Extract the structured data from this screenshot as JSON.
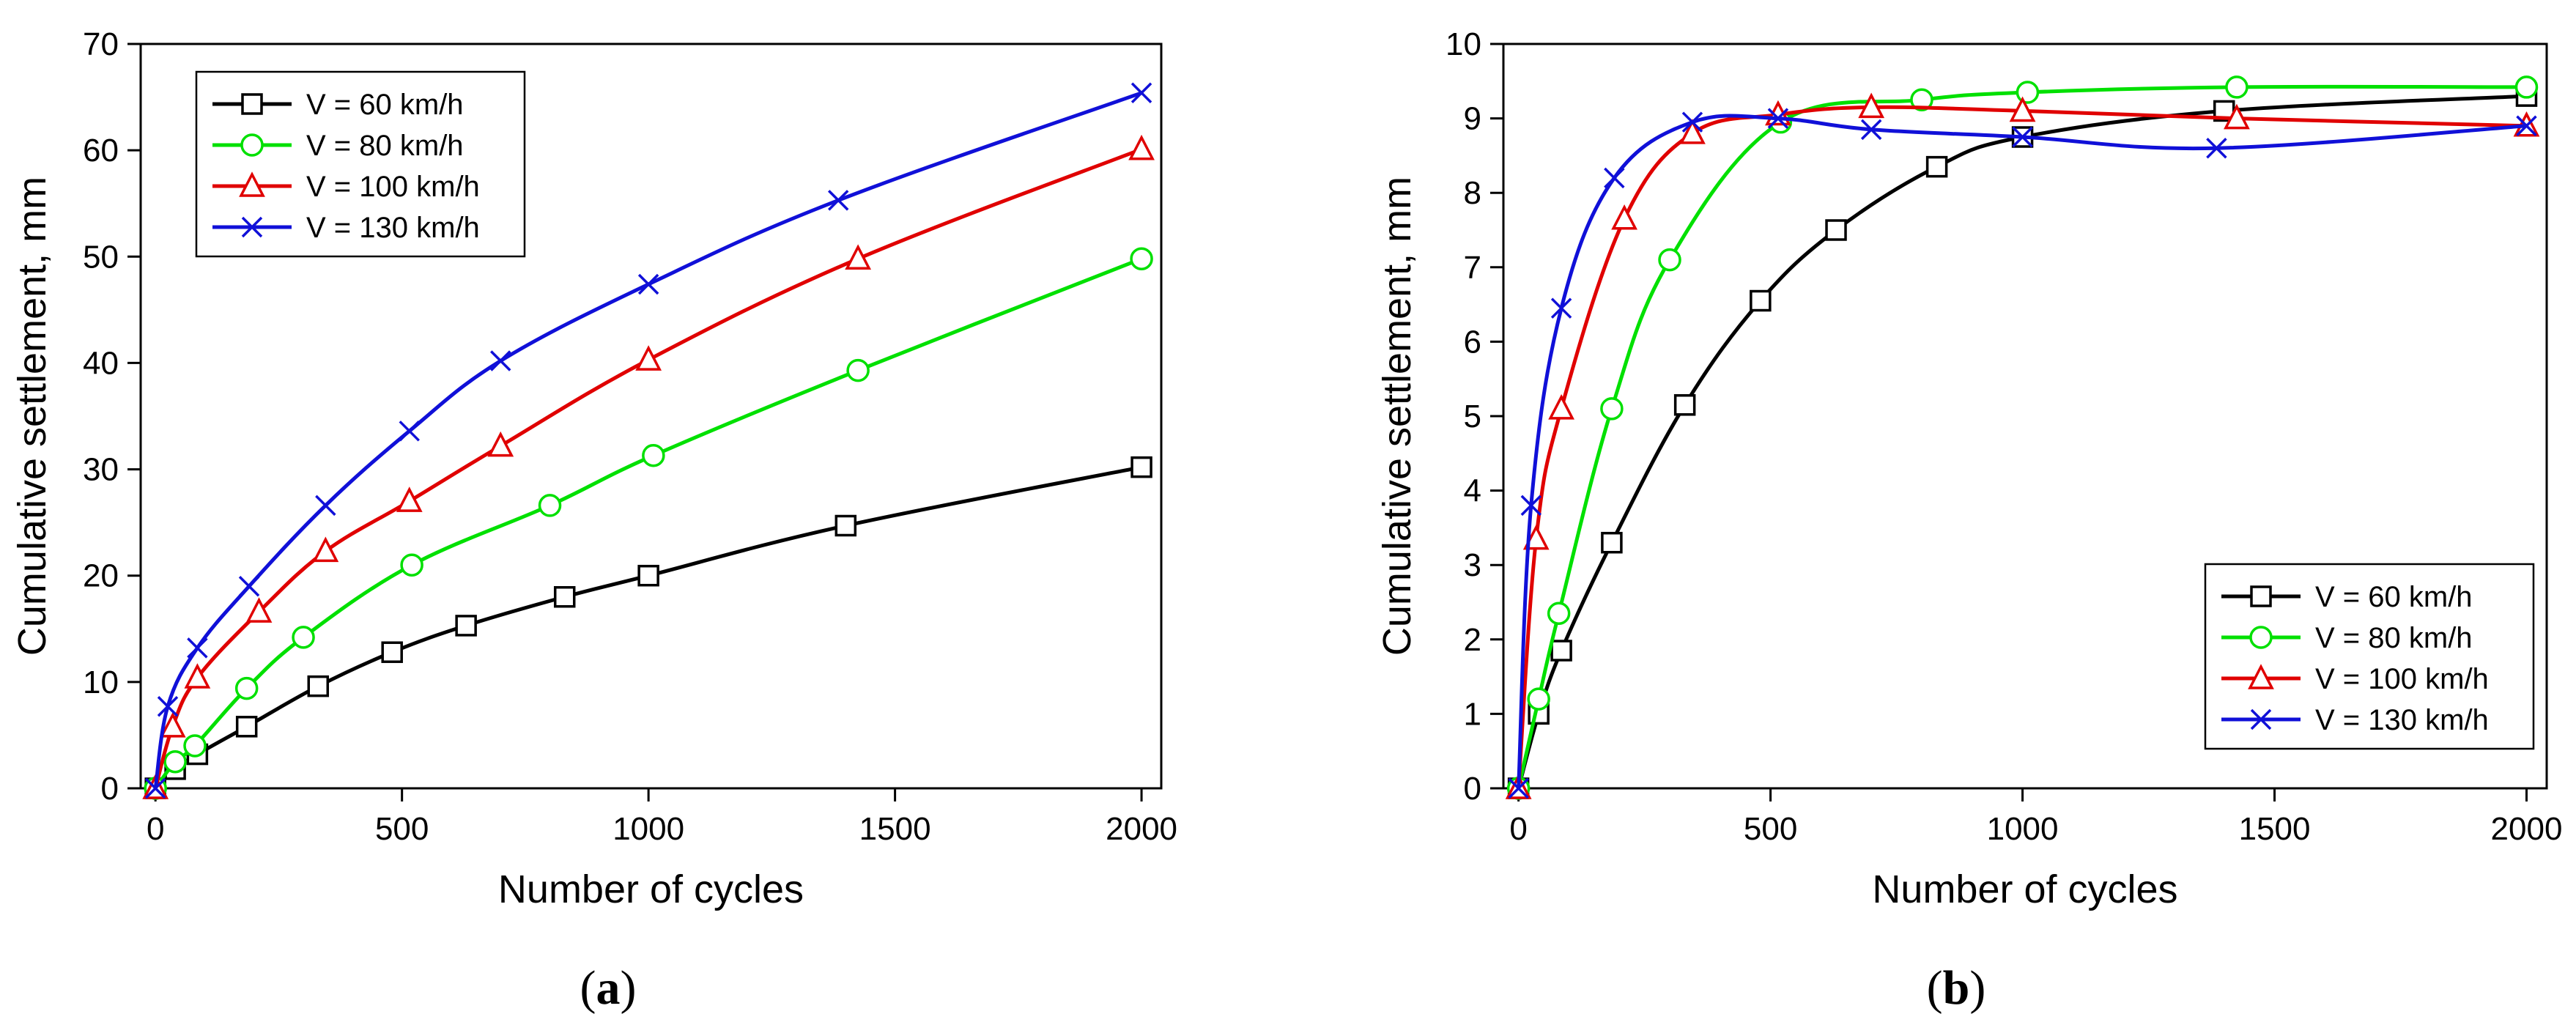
{
  "chart_data": [
    {
      "id": "a",
      "type": "line",
      "caption": {
        "open": "(",
        "letter": "a",
        "close": ")"
      },
      "xlabel": "Number of cycles",
      "ylabel": "Cumulative settlement, mm",
      "xlim": [
        -30,
        2040
      ],
      "ylim": [
        0,
        70
      ],
      "xticks": [
        0,
        500,
        1000,
        1500,
        2000
      ],
      "xtick_labels": [
        "0",
        "500",
        "1000",
        "1500",
        "2000"
      ],
      "yticks": [
        0,
        10,
        20,
        30,
        40,
        50,
        60,
        70
      ],
      "ytick_labels": [
        "0",
        "10",
        "20",
        "30",
        "40",
        "50",
        "60",
        "70"
      ],
      "legend": {
        "placement": "top-left"
      },
      "series": [
        {
          "name": "V = 60 km/h",
          "color": "#000000",
          "marker": "square",
          "x": [
            0,
            40,
            85,
            185,
            330,
            480,
            630,
            830,
            1000,
            1400,
            2000
          ],
          "y": [
            0,
            1.8,
            3.2,
            5.8,
            9.6,
            12.8,
            15.3,
            18.0,
            20.0,
            24.7,
            30.2
          ]
        },
        {
          "name": "V = 80 km/h",
          "color": "#00e000",
          "marker": "circle",
          "x": [
            0,
            40,
            80,
            185,
            300,
            520,
            800,
            1010,
            1425,
            2000
          ],
          "y": [
            0,
            2.5,
            4.0,
            9.4,
            14.2,
            21.0,
            26.6,
            31.3,
            39.3,
            49.8
          ]
        },
        {
          "name": "V = 100 km/h",
          "color": "#e00000",
          "marker": "triangle",
          "x": [
            0,
            35,
            85,
            210,
            345,
            515,
            700,
            1000,
            1425,
            2000
          ],
          "y": [
            0,
            5.8,
            10.4,
            16.6,
            22.3,
            27.0,
            32.2,
            40.3,
            49.8,
            60.1
          ]
        },
        {
          "name": "V = 130 km/h",
          "color": "#1010d8",
          "marker": "x",
          "x": [
            0,
            25,
            85,
            190,
            345,
            515,
            700,
            1000,
            1385,
            2000
          ],
          "y": [
            0,
            7.7,
            13.2,
            19.0,
            26.6,
            33.6,
            40.2,
            47.4,
            55.3,
            65.4
          ]
        }
      ]
    },
    {
      "id": "b",
      "type": "line",
      "caption": {
        "open": "(",
        "letter": "b",
        "close": ")"
      },
      "xlabel": "Number of cycles",
      "ylabel": "Cumulative settlement, mm",
      "xlim": [
        -30,
        2040
      ],
      "ylim": [
        0,
        10
      ],
      "xticks": [
        0,
        500,
        1000,
        1500,
        2000
      ],
      "xtick_labels": [
        "0",
        "500",
        "1000",
        "1500",
        "2000"
      ],
      "yticks": [
        0,
        1,
        2,
        3,
        4,
        5,
        6,
        7,
        8,
        9,
        10
      ],
      "ytick_labels": [
        "0",
        "1",
        "2",
        "3",
        "4",
        "5",
        "6",
        "7",
        "8",
        "9",
        "10"
      ],
      "legend": {
        "placement": "bottom-right"
      },
      "series": [
        {
          "name": "V = 60 km/h",
          "color": "#000000",
          "marker": "square",
          "x": [
            0,
            40,
            85,
            185,
            330,
            480,
            630,
            830,
            1000,
            1400,
            2000
          ],
          "y": [
            0,
            1.0,
            1.85,
            3.3,
            5.15,
            6.55,
            7.5,
            8.35,
            8.75,
            9.1,
            9.3
          ]
        },
        {
          "name": "V = 80 km/h",
          "color": "#00e000",
          "marker": "circle",
          "x": [
            0,
            40,
            80,
            185,
            300,
            520,
            800,
            1010,
            1425,
            2000
          ],
          "y": [
            0,
            1.2,
            2.35,
            5.1,
            7.1,
            8.95,
            9.25,
            9.35,
            9.42,
            9.42
          ]
        },
        {
          "name": "V = 100 km/h",
          "color": "#e00000",
          "marker": "triangle",
          "x": [
            0,
            35,
            85,
            210,
            345,
            515,
            700,
            1000,
            1425,
            2000
          ],
          "y": [
            0,
            3.35,
            5.1,
            7.65,
            8.8,
            9.05,
            9.15,
            9.1,
            9.0,
            8.9
          ]
        },
        {
          "name": "V = 130 km/h",
          "color": "#1010d8",
          "marker": "x",
          "x": [
            0,
            25,
            85,
            190,
            345,
            515,
            700,
            1000,
            1385,
            2000
          ],
          "y": [
            0,
            3.8,
            6.45,
            8.2,
            8.95,
            9.0,
            8.85,
            8.75,
            8.6,
            8.9
          ]
        }
      ]
    }
  ]
}
